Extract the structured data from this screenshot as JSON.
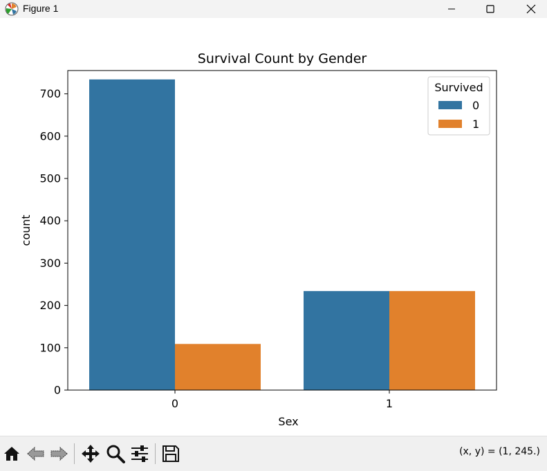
{
  "window": {
    "title": "Figure 1"
  },
  "toolbar": {
    "buttons": [
      "home-icon",
      "back-icon",
      "forward-icon",
      "pan-icon",
      "zoom-icon",
      "configure-subplots-icon",
      "save-icon"
    ],
    "coords_readout": "(x, y) = (1, 245.)"
  },
  "chart_data": {
    "type": "bar",
    "title": "Survival Count by Gender",
    "xlabel": "Sex",
    "ylabel": "count",
    "categories": [
      "0",
      "1"
    ],
    "series": [
      {
        "name": "0",
        "values": [
          734,
          234
        ],
        "color": "#3274a1"
      },
      {
        "name": "1",
        "values": [
          109,
          234
        ],
        "color": "#e1812c"
      }
    ],
    "ylim": [
      0,
      755
    ],
    "yticks": [
      0,
      100,
      200,
      300,
      400,
      500,
      600,
      700
    ],
    "legend": {
      "title": "Survived",
      "placement": "top-right"
    },
    "grid": false
  }
}
